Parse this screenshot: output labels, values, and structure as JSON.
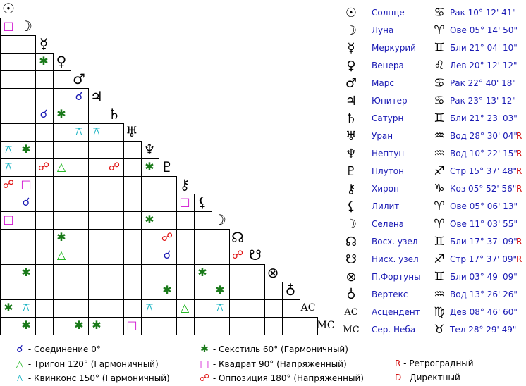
{
  "planets": [
    {
      "symbol": "☉",
      "name": "Солнце",
      "sign": "♋",
      "pos": "Рак 10° 12' 41\"",
      "retro": ""
    },
    {
      "symbol": "☽",
      "name": "Луна",
      "sign": "♈",
      "pos": "Ове 05° 14' 50\"",
      "retro": ""
    },
    {
      "symbol": "☿",
      "name": "Меркурий",
      "sign": "♊",
      "pos": "Бли 21° 04' 10\"",
      "retro": ""
    },
    {
      "symbol": "♀",
      "name": "Венера",
      "sign": "♌",
      "pos": "Лев 20° 12' 12\"",
      "retro": ""
    },
    {
      "symbol": "♂",
      "name": "Марс",
      "sign": "♋",
      "pos": "Рак 22° 40' 18\"",
      "retro": ""
    },
    {
      "symbol": "♃",
      "name": "Юпитер",
      "sign": "♋",
      "pos": "Рак 23° 13' 12\"",
      "retro": ""
    },
    {
      "symbol": "♄",
      "name": "Сатурн",
      "sign": "♊",
      "pos": "Бли 21° 23' 03\"",
      "retro": ""
    },
    {
      "symbol": "♅",
      "name": "Уран",
      "sign": "♒",
      "pos": "Вод 28° 30' 04\"",
      "retro": "R"
    },
    {
      "symbol": "♆",
      "name": "Нептун",
      "sign": "♒",
      "pos": "Вод 10° 22' 15\"",
      "retro": "R"
    },
    {
      "symbol": "♇",
      "name": "Плутон",
      "sign": "♐",
      "pos": "Стр 15° 37' 48\"",
      "retro": "R"
    },
    {
      "symbol": "⚷",
      "name": "Хирон",
      "sign": "♑",
      "pos": "Коз 05° 52' 56\"",
      "retro": "R"
    },
    {
      "symbol": "⚸",
      "name": "Лилит",
      "sign": "♈",
      "pos": "Ове 05° 06' 13\"",
      "retro": ""
    },
    {
      "symbol": "☽",
      "name": "Селена",
      "sign": "♈",
      "pos": "Ове 11° 03' 55\"",
      "retro": ""
    },
    {
      "symbol": "☊",
      "name": "Восх. узел",
      "sign": "♊",
      "pos": "Бли 17° 37' 09\"",
      "retro": "R"
    },
    {
      "symbol": "☋",
      "name": "Нисх. узел",
      "sign": "♐",
      "pos": "Стр 17° 37' 09\"",
      "retro": "R"
    },
    {
      "symbol": "⊗",
      "name": "П.Фортуны",
      "sign": "♊",
      "pos": "Бли 03° 49' 09\"",
      "retro": ""
    },
    {
      "symbol": "♁",
      "name": "Вертекс",
      "sign": "♒",
      "pos": "Вод 13° 26' 26\"",
      "retro": ""
    },
    {
      "symbol": "AC",
      "name": "Асцендент",
      "sign": "♍",
      "pos": "Дев 08° 46' 60\"",
      "retro": ""
    },
    {
      "symbol": "MC",
      "name": "Сер. Неба",
      "sign": "♉",
      "pos": "Тел 28° 29' 49\"",
      "retro": ""
    }
  ],
  "aspect_types": {
    "conj": {
      "symbol": "☌",
      "color": "#1a1ab4",
      "label": "- Соединение 0°"
    },
    "sext": {
      "symbol": "✱",
      "color": "#1a7a1a",
      "label": "- Секстиль 60° (Гармоничный)"
    },
    "trine": {
      "symbol": "△",
      "color": "#10b010",
      "label": "- Тригон 120° (Гармоничный)"
    },
    "square": {
      "symbol": "□",
      "color": "#d010d0",
      "label": "- Квадрат 90° (Напряженный)"
    },
    "quinc": {
      "symbol": "⚻",
      "color": "#10b0c0",
      "label": "- Квинконс 150° (Гармоничный)"
    },
    "opp": {
      "symbol": "☍",
      "color": "#e01010",
      "label": "- Оппозиция 180° (Напряженный)"
    }
  },
  "aspects": [
    {
      "row": 1,
      "col": 0,
      "type": "square"
    },
    {
      "row": 3,
      "col": 2,
      "type": "sext"
    },
    {
      "row": 5,
      "col": 4,
      "type": "conj"
    },
    {
      "row": 6,
      "col": 2,
      "type": "conj"
    },
    {
      "row": 6,
      "col": 3,
      "type": "sext"
    },
    {
      "row": 7,
      "col": 4,
      "type": "quinc"
    },
    {
      "row": 7,
      "col": 5,
      "type": "quinc"
    },
    {
      "row": 8,
      "col": 0,
      "type": "quinc"
    },
    {
      "row": 8,
      "col": 1,
      "type": "sext"
    },
    {
      "row": 9,
      "col": 0,
      "type": "quinc"
    },
    {
      "row": 9,
      "col": 2,
      "type": "opp"
    },
    {
      "row": 9,
      "col": 3,
      "type": "trine"
    },
    {
      "row": 9,
      "col": 6,
      "type": "opp"
    },
    {
      "row": 9,
      "col": 8,
      "type": "sext"
    },
    {
      "row": 10,
      "col": 0,
      "type": "opp"
    },
    {
      "row": 10,
      "col": 1,
      "type": "square"
    },
    {
      "row": 11,
      "col": 1,
      "type": "conj"
    },
    {
      "row": 11,
      "col": 10,
      "type": "square"
    },
    {
      "row": 12,
      "col": 0,
      "type": "square"
    },
    {
      "row": 12,
      "col": 8,
      "type": "sext"
    },
    {
      "row": 13,
      "col": 3,
      "type": "sext"
    },
    {
      "row": 13,
      "col": 9,
      "type": "opp"
    },
    {
      "row": 14,
      "col": 3,
      "type": "trine"
    },
    {
      "row": 14,
      "col": 9,
      "type": "conj"
    },
    {
      "row": 14,
      "col": 13,
      "type": "opp"
    },
    {
      "row": 15,
      "col": 1,
      "type": "sext"
    },
    {
      "row": 15,
      "col": 11,
      "type": "sext"
    },
    {
      "row": 16,
      "col": 9,
      "type": "sext"
    },
    {
      "row": 16,
      "col": 12,
      "type": "sext"
    },
    {
      "row": 17,
      "col": 0,
      "type": "sext"
    },
    {
      "row": 17,
      "col": 1,
      "type": "quinc"
    },
    {
      "row": 17,
      "col": 8,
      "type": "quinc"
    },
    {
      "row": 17,
      "col": 10,
      "type": "trine"
    },
    {
      "row": 17,
      "col": 12,
      "type": "quinc"
    },
    {
      "row": 18,
      "col": 1,
      "type": "sext"
    },
    {
      "row": 18,
      "col": 4,
      "type": "sext"
    },
    {
      "row": 18,
      "col": 5,
      "type": "sext"
    },
    {
      "row": 18,
      "col": 7,
      "type": "square"
    }
  ],
  "legend": {
    "retro": {
      "letter": "R",
      "label": "- Ретроградный"
    },
    "direct": {
      "letter": "D",
      "label": "- Директный"
    }
  }
}
